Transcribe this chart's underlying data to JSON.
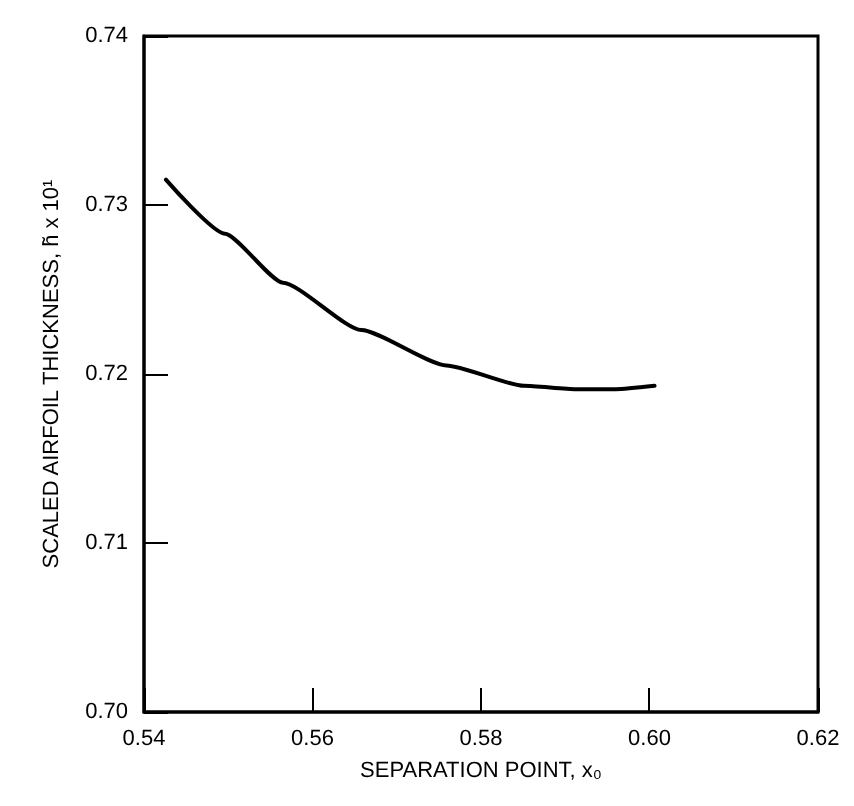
{
  "chart_data": {
    "type": "line",
    "xlabel": "SEPARATION POINT, x₀",
    "ylabel": "SCALED AIRFOIL THICKNESS, h̃ x 10¹",
    "x": [
      0.5426,
      0.5496,
      0.5565,
      0.5658,
      0.5759,
      0.5851,
      0.5913,
      0.596,
      0.6006
    ],
    "series": [
      {
        "color": "#000000",
        "values": [
          0.7315,
          0.7283,
          0.7254,
          0.7226,
          0.7205,
          0.7193,
          0.7191,
          0.7191,
          0.7193
        ]
      }
    ],
    "xlim": [
      0.54,
      0.62
    ],
    "xticks": [
      {
        "value": 0.54,
        "label": "0.54"
      },
      {
        "value": 0.56,
        "label": "0.56"
      },
      {
        "value": 0.58,
        "label": "0.58"
      },
      {
        "value": 0.6,
        "label": "0.60"
      },
      {
        "value": 0.62,
        "label": "0.62"
      }
    ],
    "ylim": [
      0.7,
      0.74
    ],
    "yticks": [
      {
        "value": 0.7,
        "label": "0.70"
      },
      {
        "value": 0.71,
        "label": "0.71"
      },
      {
        "value": 0.72,
        "label": "0.72"
      },
      {
        "value": 0.73,
        "label": "0.73"
      },
      {
        "value": 0.74,
        "label": "0.74"
      }
    ],
    "grid": false,
    "marker": "none",
    "line_style": "solid"
  }
}
